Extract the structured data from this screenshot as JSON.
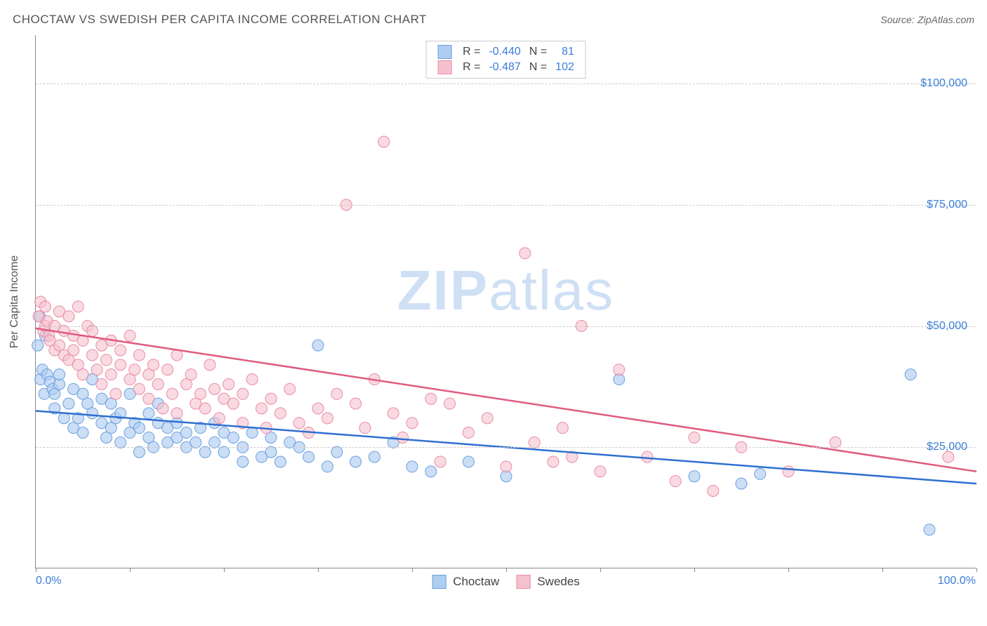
{
  "title": "CHOCTAW VS SWEDISH PER CAPITA INCOME CORRELATION CHART",
  "source_label": "Source:",
  "source_name": "ZipAtlas.com",
  "watermark_bold": "ZIP",
  "watermark_light": "atlas",
  "yaxis_title": "Per Capita Income",
  "chart": {
    "type": "scatter",
    "xlim": [
      0,
      100
    ],
    "ylim": [
      0,
      110000
    ],
    "x_tick_positions": [
      0,
      10,
      20,
      30,
      40,
      50,
      60,
      70,
      80,
      90,
      100
    ],
    "x_axis_labels": [
      {
        "x": 0,
        "text": "0.0%",
        "align": "left"
      },
      {
        "x": 100,
        "text": "100.0%",
        "align": "right"
      }
    ],
    "y_gridlines": [
      25000,
      50000,
      75000,
      100000
    ],
    "y_tick_labels": [
      {
        "y": 25000,
        "text": "$25,000"
      },
      {
        "y": 50000,
        "text": "$50,000"
      },
      {
        "y": 75000,
        "text": "$75,000"
      },
      {
        "y": 100000,
        "text": "$100,000"
      }
    ],
    "background_color": "#ffffff",
    "grid_color": "#cccccc",
    "axis_color": "#888888",
    "label_color": "#3b7dd8",
    "series": [
      {
        "name": "Choctaw",
        "fill": "#afcdf0",
        "stroke": "#6aa0e0",
        "line_color": "#2f6fd0",
        "marker_radius": 8,
        "marker_opacity": 0.65,
        "R": "-0.440",
        "N": "81",
        "trend": {
          "x1": 0,
          "y1": 32500,
          "x2": 100,
          "y2": 17500
        },
        "points": [
          [
            0.2,
            46000
          ],
          [
            0.4,
            52000
          ],
          [
            0.5,
            39000
          ],
          [
            0.7,
            41000
          ],
          [
            0.9,
            36000
          ],
          [
            1.0,
            48000
          ],
          [
            1.2,
            40000
          ],
          [
            1.5,
            38500
          ],
          [
            1.8,
            37000
          ],
          [
            2.0,
            36000
          ],
          [
            2.0,
            33000
          ],
          [
            2.5,
            38000
          ],
          [
            2.5,
            40000
          ],
          [
            3.0,
            31000
          ],
          [
            3.5,
            34000
          ],
          [
            4.0,
            37000
          ],
          [
            4.0,
            29000
          ],
          [
            4.5,
            31000
          ],
          [
            5.0,
            36000
          ],
          [
            5.0,
            28000
          ],
          [
            5.5,
            34000
          ],
          [
            6.0,
            32000
          ],
          [
            6.0,
            39000
          ],
          [
            7.0,
            35000
          ],
          [
            7.0,
            30000
          ],
          [
            7.5,
            27000
          ],
          [
            8.0,
            29000
          ],
          [
            8.0,
            34000
          ],
          [
            8.5,
            31000
          ],
          [
            9.0,
            32000
          ],
          [
            9.0,
            26000
          ],
          [
            10.0,
            28000
          ],
          [
            10.0,
            36000
          ],
          [
            10.5,
            30000
          ],
          [
            11.0,
            29000
          ],
          [
            11.0,
            24000
          ],
          [
            12.0,
            27000
          ],
          [
            12.0,
            32000
          ],
          [
            12.5,
            25000
          ],
          [
            13.0,
            30000
          ],
          [
            13.0,
            34000
          ],
          [
            14.0,
            26000
          ],
          [
            14.0,
            29000
          ],
          [
            15.0,
            27000
          ],
          [
            15.0,
            30000
          ],
          [
            16.0,
            25000
          ],
          [
            16.0,
            28000
          ],
          [
            17.0,
            26000
          ],
          [
            17.5,
            29000
          ],
          [
            18.0,
            24000
          ],
          [
            19.0,
            26000
          ],
          [
            19.0,
            30000
          ],
          [
            20.0,
            24000
          ],
          [
            20.0,
            28000
          ],
          [
            21.0,
            27000
          ],
          [
            22.0,
            25000
          ],
          [
            22.0,
            22000
          ],
          [
            23.0,
            28000
          ],
          [
            24.0,
            23000
          ],
          [
            25.0,
            24000
          ],
          [
            25.0,
            27000
          ],
          [
            26.0,
            22000
          ],
          [
            27.0,
            26000
          ],
          [
            28.0,
            25000
          ],
          [
            29.0,
            23000
          ],
          [
            30.0,
            46000
          ],
          [
            31.0,
            21000
          ],
          [
            32.0,
            24000
          ],
          [
            34.0,
            22000
          ],
          [
            36.0,
            23000
          ],
          [
            38.0,
            26000
          ],
          [
            40.0,
            21000
          ],
          [
            42.0,
            20000
          ],
          [
            46.0,
            22000
          ],
          [
            50.0,
            19000
          ],
          [
            62.0,
            39000
          ],
          [
            70.0,
            19000
          ],
          [
            75.0,
            17500
          ],
          [
            77.0,
            19500
          ],
          [
            93.0,
            40000
          ],
          [
            95.0,
            8000
          ]
        ]
      },
      {
        "name": "Swedes",
        "fill": "#f5c1cf",
        "stroke": "#e98ba4",
        "line_color": "#e05a7e",
        "marker_radius": 8,
        "marker_opacity": 0.6,
        "R": "-0.487",
        "N": "102",
        "trend": {
          "x1": 0,
          "y1": 49500,
          "x2": 100,
          "y2": 20000
        },
        "points": [
          [
            0.3,
            52000
          ],
          [
            0.5,
            55000
          ],
          [
            0.8,
            49000
          ],
          [
            1.0,
            54000
          ],
          [
            1.0,
            50000
          ],
          [
            1.2,
            51000
          ],
          [
            1.4,
            48000
          ],
          [
            1.5,
            47000
          ],
          [
            2.0,
            50000
          ],
          [
            2.0,
            45000
          ],
          [
            2.5,
            53000
          ],
          [
            2.5,
            46000
          ],
          [
            3.0,
            49000
          ],
          [
            3.0,
            44000
          ],
          [
            3.5,
            52000
          ],
          [
            3.5,
            43000
          ],
          [
            4.0,
            48000
          ],
          [
            4.0,
            45000
          ],
          [
            4.5,
            54000
          ],
          [
            4.5,
            42000
          ],
          [
            5.0,
            47000
          ],
          [
            5.0,
            40000
          ],
          [
            5.5,
            50000
          ],
          [
            6.0,
            44000
          ],
          [
            6.0,
            49000
          ],
          [
            6.5,
            41000
          ],
          [
            7.0,
            46000
          ],
          [
            7.0,
            38000
          ],
          [
            7.5,
            43000
          ],
          [
            8.0,
            47000
          ],
          [
            8.0,
            40000
          ],
          [
            8.5,
            36000
          ],
          [
            9.0,
            42000
          ],
          [
            9.0,
            45000
          ],
          [
            10.0,
            48000
          ],
          [
            10.0,
            39000
          ],
          [
            10.5,
            41000
          ],
          [
            11.0,
            37000
          ],
          [
            11.0,
            44000
          ],
          [
            12.0,
            40000
          ],
          [
            12.0,
            35000
          ],
          [
            12.5,
            42000
          ],
          [
            13.0,
            38000
          ],
          [
            13.5,
            33000
          ],
          [
            14.0,
            41000
          ],
          [
            14.5,
            36000
          ],
          [
            15.0,
            44000
          ],
          [
            15.0,
            32000
          ],
          [
            16.0,
            38000
          ],
          [
            16.5,
            40000
          ],
          [
            17.0,
            34000
          ],
          [
            17.5,
            36000
          ],
          [
            18.0,
            33000
          ],
          [
            18.5,
            42000
          ],
          [
            19.0,
            37000
          ],
          [
            19.5,
            31000
          ],
          [
            20.0,
            35000
          ],
          [
            20.5,
            38000
          ],
          [
            21.0,
            34000
          ],
          [
            22.0,
            36000
          ],
          [
            22.0,
            30000
          ],
          [
            23.0,
            39000
          ],
          [
            24.0,
            33000
          ],
          [
            24.5,
            29000
          ],
          [
            25.0,
            35000
          ],
          [
            26.0,
            32000
          ],
          [
            27.0,
            37000
          ],
          [
            28.0,
            30000
          ],
          [
            29.0,
            28000
          ],
          [
            30.0,
            33000
          ],
          [
            31.0,
            31000
          ],
          [
            32.0,
            36000
          ],
          [
            33.0,
            75000
          ],
          [
            34.0,
            34000
          ],
          [
            35.0,
            29000
          ],
          [
            36.0,
            39000
          ],
          [
            37.0,
            88000
          ],
          [
            38.0,
            32000
          ],
          [
            39.0,
            27000
          ],
          [
            40.0,
            30000
          ],
          [
            42.0,
            35000
          ],
          [
            43.0,
            22000
          ],
          [
            44.0,
            34000
          ],
          [
            46.0,
            28000
          ],
          [
            48.0,
            31000
          ],
          [
            50.0,
            21000
          ],
          [
            52.0,
            65000
          ],
          [
            53.0,
            26000
          ],
          [
            55.0,
            22000
          ],
          [
            56.0,
            29000
          ],
          [
            57.0,
            23000
          ],
          [
            58.0,
            50000
          ],
          [
            60.0,
            20000
          ],
          [
            62.0,
            41000
          ],
          [
            65.0,
            23000
          ],
          [
            68.0,
            18000
          ],
          [
            70.0,
            27000
          ],
          [
            72.0,
            16000
          ],
          [
            75.0,
            25000
          ],
          [
            80.0,
            20000
          ],
          [
            85.0,
            26000
          ],
          [
            97.0,
            23000
          ]
        ]
      }
    ],
    "legend_bottom": [
      {
        "label": "Choctaw",
        "fill": "#afcdf0",
        "stroke": "#6aa0e0"
      },
      {
        "label": "Swedes",
        "fill": "#f5c1cf",
        "stroke": "#e98ba4"
      }
    ]
  }
}
